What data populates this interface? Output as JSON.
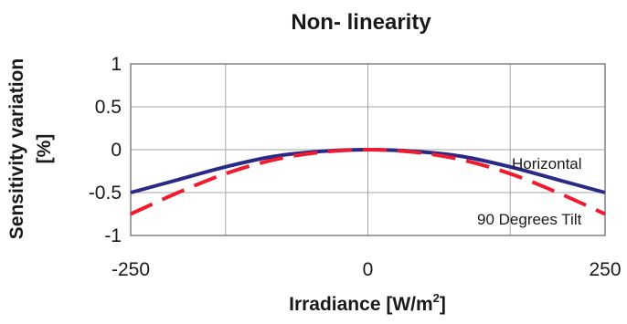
{
  "chart_data": {
    "type": "line",
    "title": "Non- linearity",
    "xlabel_text": "Irradiance [W/m",
    "xlabel_sup": "2",
    "xlabel_end": "]",
    "ylabel_line1": "Sensitivity variation",
    "ylabel_line2": "[%]",
    "xlim": [
      -250,
      250
    ],
    "ylim": [
      -1,
      1
    ],
    "x_ticks": [
      -250,
      0,
      250
    ],
    "y_ticks": [
      1,
      0.5,
      0,
      -0.5,
      -1
    ],
    "x_tick_labels": [
      "-250",
      "0",
      "250"
    ],
    "y_tick_labels": [
      "1",
      "0.5",
      "0",
      "-0.5",
      "-1"
    ],
    "grid": true,
    "series": [
      {
        "name": "Horizontal",
        "color": "#2a2a86",
        "style": "solid",
        "x": [
          -250,
          -200,
          -150,
          -100,
          -50,
          0,
          50,
          100,
          150,
          200,
          250
        ],
        "y": [
          -0.5,
          -0.35,
          -0.2,
          -0.08,
          -0.02,
          0,
          -0.02,
          -0.08,
          -0.2,
          -0.35,
          -0.5
        ]
      },
      {
        "name": "90 Degrees Tilt",
        "color": "#ee1c2e",
        "style": "dashed",
        "x": [
          -250,
          -200,
          -150,
          -100,
          -50,
          0,
          50,
          100,
          150,
          200,
          250
        ],
        "y": [
          -0.75,
          -0.5,
          -0.28,
          -0.12,
          -0.03,
          0,
          -0.03,
          -0.12,
          -0.28,
          -0.5,
          -0.75
        ]
      }
    ]
  }
}
